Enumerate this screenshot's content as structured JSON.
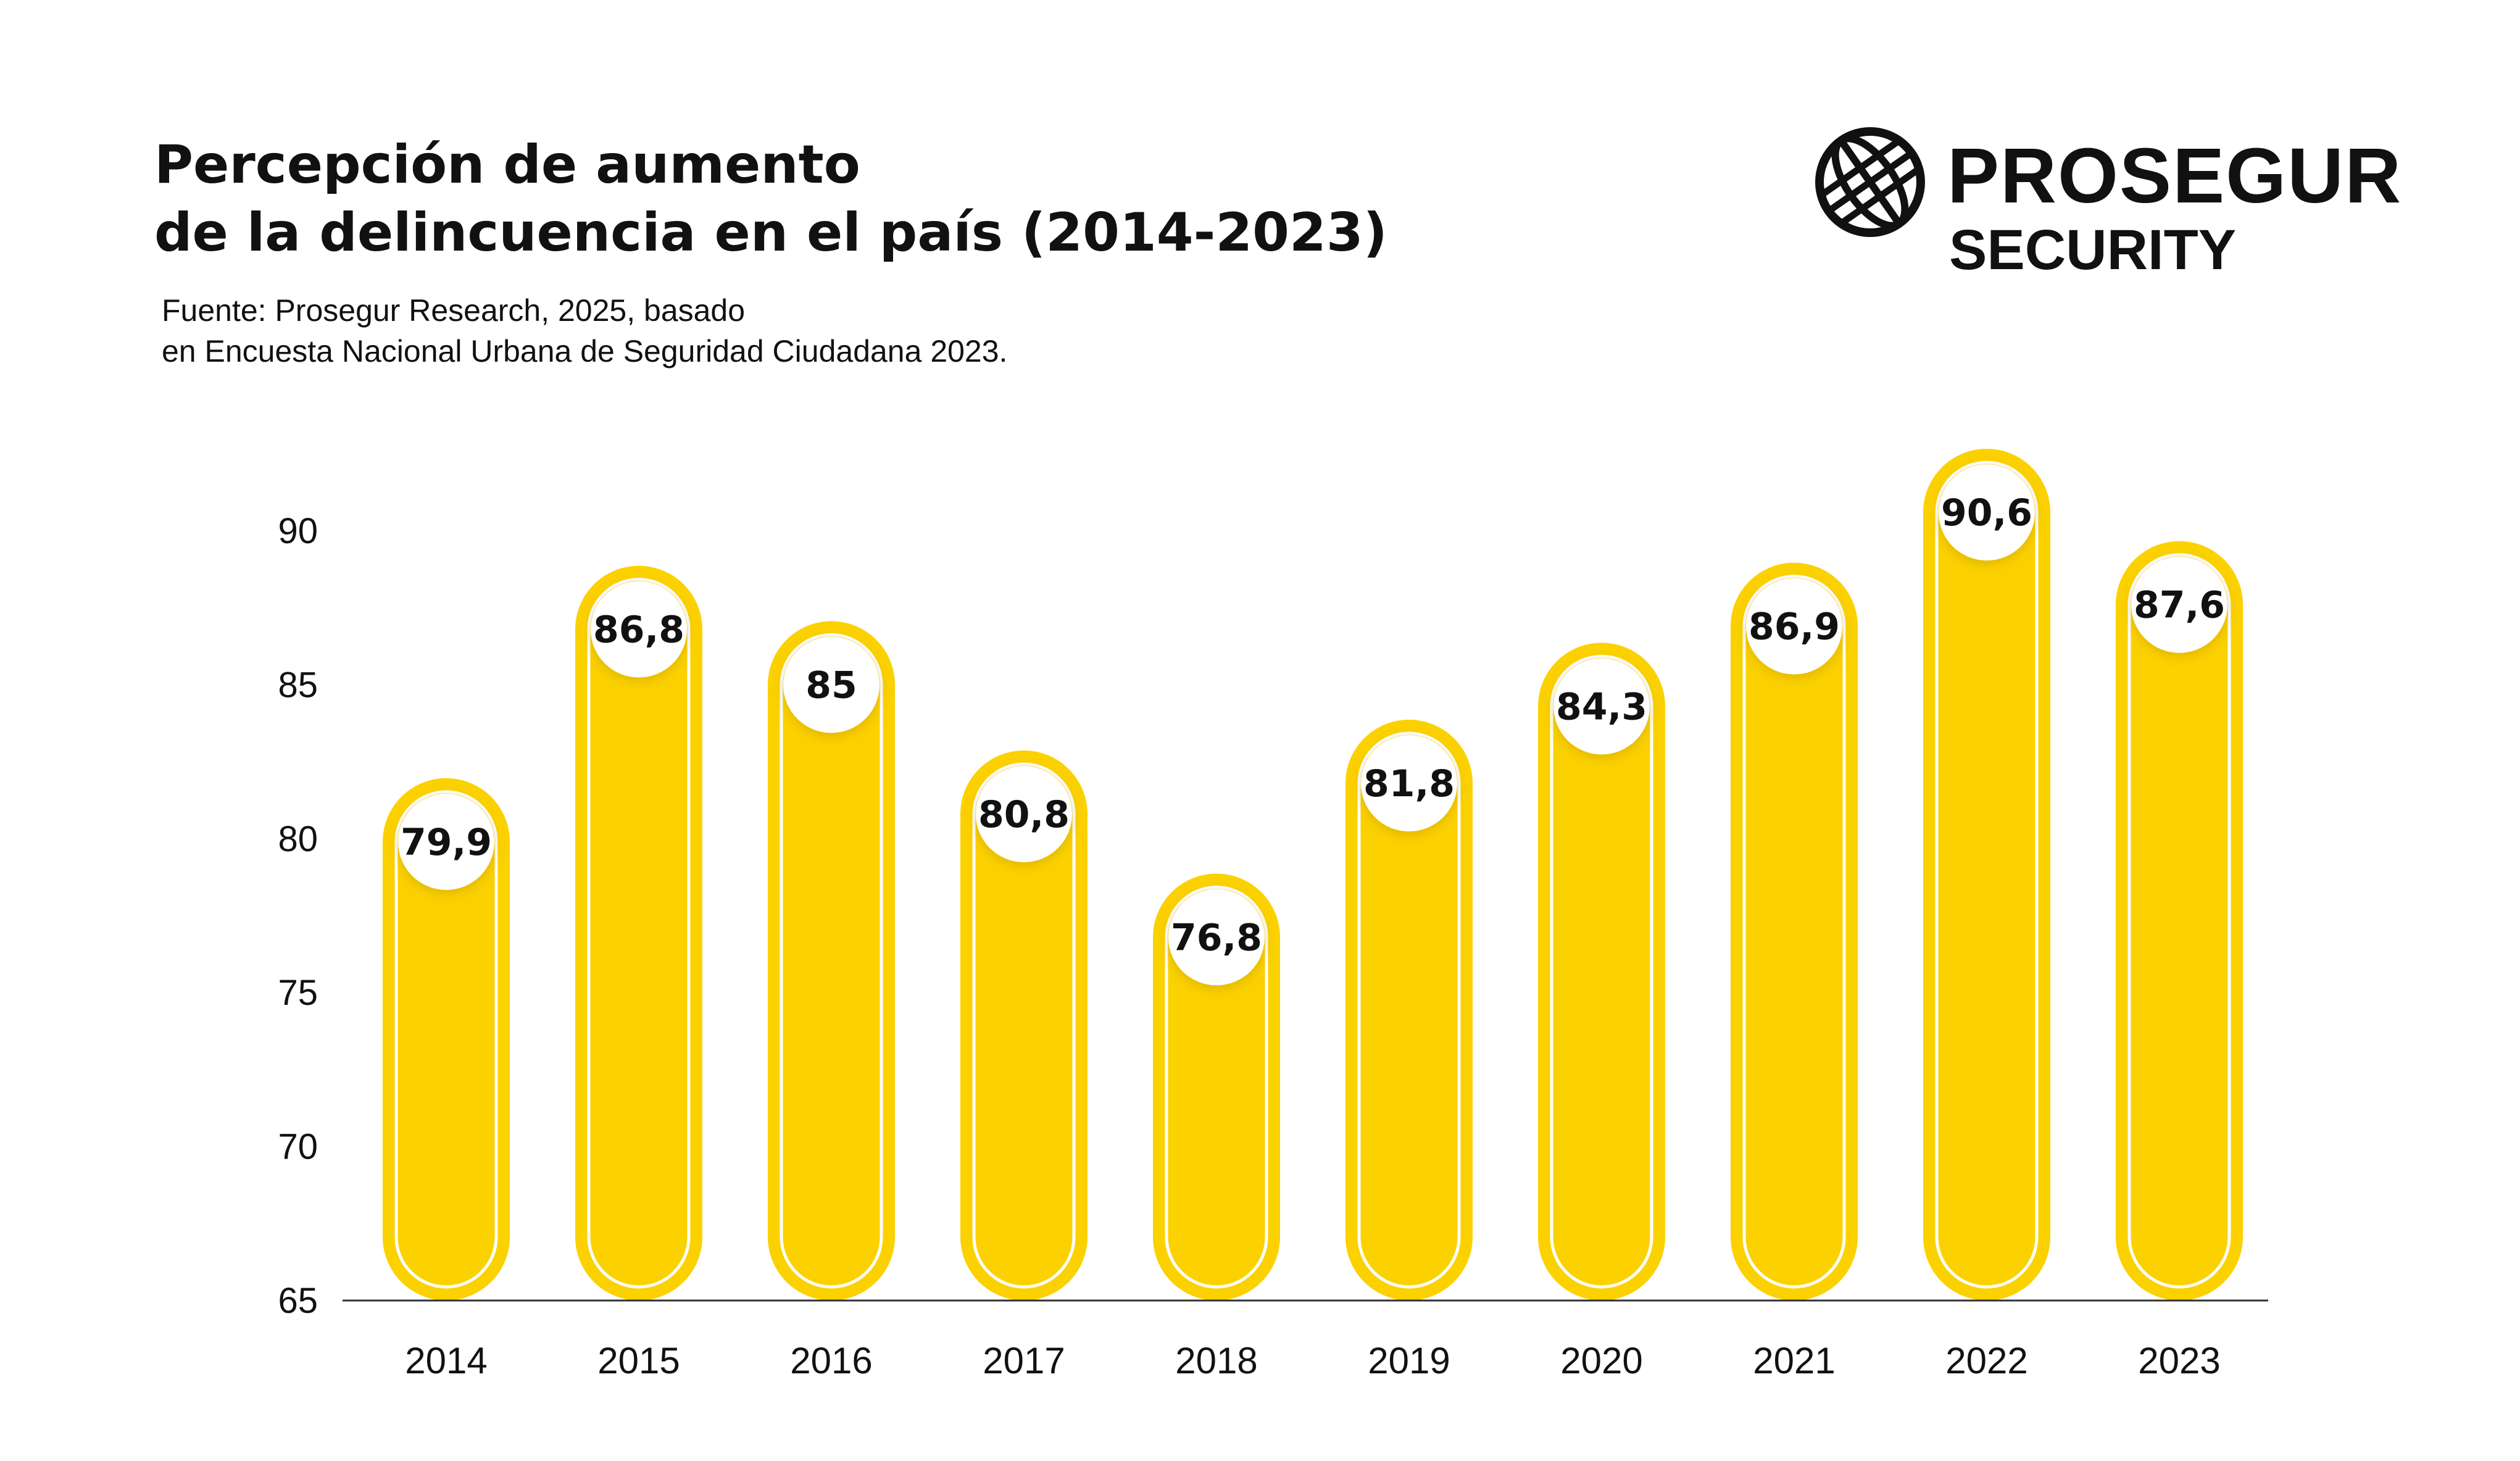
{
  "title_lines": [
    "Percepción de aumento",
    "de la delincuencia en el país (2014-2023)"
  ],
  "source_lines": [
    "Fuente:  Prosegur Research, 2025, basado",
    "en Encuesta Nacional Urbana de Seguridad Ciudadana 2023."
  ],
  "logo": {
    "line1": "PROSEGUR",
    "line2": "SECURITY",
    "icon": "globe-icon"
  },
  "colors": {
    "bar": "#FCD100",
    "label_bg": "#FFFFFF",
    "text": "#111111",
    "axis": "#333333"
  },
  "chart_data": {
    "type": "bar",
    "categories": [
      "2014",
      "2015",
      "2016",
      "2017",
      "2018",
      "2019",
      "2020",
      "2021",
      "2022",
      "2023"
    ],
    "values": [
      79.9,
      86.8,
      85,
      80.8,
      76.8,
      81.8,
      84.3,
      86.9,
      90.6,
      87.6
    ],
    "value_labels": [
      "79,9",
      "86,8",
      "85",
      "80,8",
      "76,8",
      "81,8",
      "84,3",
      "86,9",
      "90,6",
      "87,6"
    ],
    "y_ticks": [
      "65",
      "70",
      "75",
      "80",
      "85",
      "90"
    ],
    "ylim": [
      65,
      90
    ],
    "grid": false,
    "legend": "none"
  }
}
